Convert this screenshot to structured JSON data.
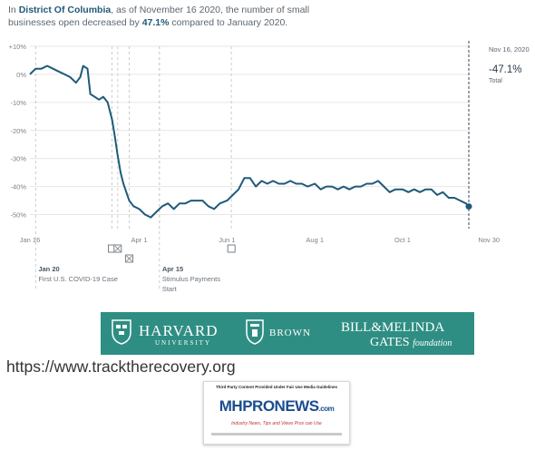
{
  "headline": {
    "p1": "In ",
    "place": "District Of Columbia",
    "p2": ", as of November 16 2020, the number of small businesses open decreased by ",
    "pct": "47.1%",
    "p3": " compared to January 2020."
  },
  "chart_data": {
    "type": "line",
    "title": "",
    "xlabel": "",
    "ylabel": "",
    "ylim": [
      -55,
      10
    ],
    "y_ticks": [
      "+10%",
      "0%",
      "-10%",
      "-20%",
      "-30%",
      "-40%",
      "-50%"
    ],
    "x_ticks": [
      "Jan 16",
      "Apr 1",
      "Jun 1",
      "Aug 1",
      "Oct 1",
      "Nov 30"
    ],
    "grid": true,
    "series": [
      {
        "x": [
          "2020-01-16",
          "2020-01-20",
          "2020-01-24",
          "2020-01-28",
          "2020-02-01",
          "2020-02-05",
          "2020-02-09",
          "2020-02-13",
          "2020-02-17",
          "2020-02-20",
          "2020-02-22",
          "2020-02-25",
          "2020-02-27",
          "2020-03-01",
          "2020-03-04",
          "2020-03-07",
          "2020-03-10",
          "2020-03-13",
          "2020-03-15",
          "2020-03-17",
          "2020-03-19",
          "2020-03-21",
          "2020-03-23",
          "2020-03-25",
          "2020-03-28",
          "2020-04-01",
          "2020-04-05",
          "2020-04-09",
          "2020-04-13",
          "2020-04-17",
          "2020-04-21",
          "2020-04-25",
          "2020-04-29",
          "2020-05-03",
          "2020-05-07",
          "2020-05-11",
          "2020-05-15",
          "2020-05-19",
          "2020-05-23",
          "2020-05-27",
          "2020-06-01",
          "2020-06-05",
          "2020-06-09",
          "2020-06-13",
          "2020-06-17",
          "2020-06-21",
          "2020-06-25",
          "2020-06-29",
          "2020-07-03",
          "2020-07-07",
          "2020-07-11",
          "2020-07-15",
          "2020-07-19",
          "2020-07-23",
          "2020-07-27",
          "2020-08-01",
          "2020-08-05",
          "2020-08-09",
          "2020-08-13",
          "2020-08-17",
          "2020-08-21",
          "2020-08-25",
          "2020-08-29",
          "2020-09-02",
          "2020-09-06",
          "2020-09-10",
          "2020-09-14",
          "2020-09-18",
          "2020-09-22",
          "2020-09-26",
          "2020-10-01",
          "2020-10-05",
          "2020-10-09",
          "2020-10-13",
          "2020-10-17",
          "2020-10-21",
          "2020-10-25",
          "2020-10-29",
          "2020-11-02",
          "2020-11-06",
          "2020-11-10",
          "2020-11-14",
          "2020-11-16"
        ],
        "values": [
          0,
          2,
          2,
          3,
          2,
          1,
          0,
          -1,
          -3,
          -1,
          3,
          2,
          -7,
          -8,
          -9,
          -8,
          -10,
          -16,
          -22,
          -29,
          -35,
          -39,
          -42,
          -45,
          -47,
          -48,
          -50,
          -51,
          -49,
          -47,
          -46,
          -48,
          -46,
          -46,
          -45,
          -45,
          -45,
          -47,
          -48,
          -46,
          -45,
          -43,
          -41,
          -37,
          -37,
          -40,
          -38,
          -39,
          -38,
          -39,
          -39,
          -38,
          -39,
          -39,
          -40,
          -39,
          -41,
          -40,
          -40,
          -41,
          -40,
          -41,
          -40,
          -40,
          -39,
          -39,
          -38,
          -40,
          -42,
          -41,
          -41,
          -42,
          -41,
          -42,
          -41,
          -41,
          -43,
          -42,
          -44,
          -44,
          -45,
          -46,
          -47.1
        ]
      }
    ],
    "final_point": {
      "date": "Nov 16, 2020",
      "value": "-47.1%",
      "label": "Total"
    },
    "events": [
      {
        "date": "2020-01-20",
        "label": "Jan 20",
        "desc": "First U.S. COVID-19 Case"
      },
      {
        "date": "2020-04-15",
        "label": "Apr 15",
        "desc": "Stimulus Payments Start"
      }
    ],
    "marker_lines": [
      "2020-03-13",
      "2020-03-17",
      "2020-03-25",
      "2020-04-15",
      "2020-06-04"
    ],
    "line_color": "#1f5a7a"
  },
  "banner": {
    "harvard": "HARVARD",
    "harvard_sub": "UNIVERSITY",
    "brown": "BROWN",
    "gates_line1": "BILL&MELINDA",
    "gates_line2": "GATES",
    "gates_foundation": "foundation"
  },
  "url": "https://www.tracktherecovery.org",
  "mhpronews": {
    "top": "Third Party Content Provided Under Fair Use Media Guidelines",
    "logo": "MHPRONEWS",
    "com": ".com",
    "tagline": "Industry News, Tips and Views Pros can Use"
  }
}
